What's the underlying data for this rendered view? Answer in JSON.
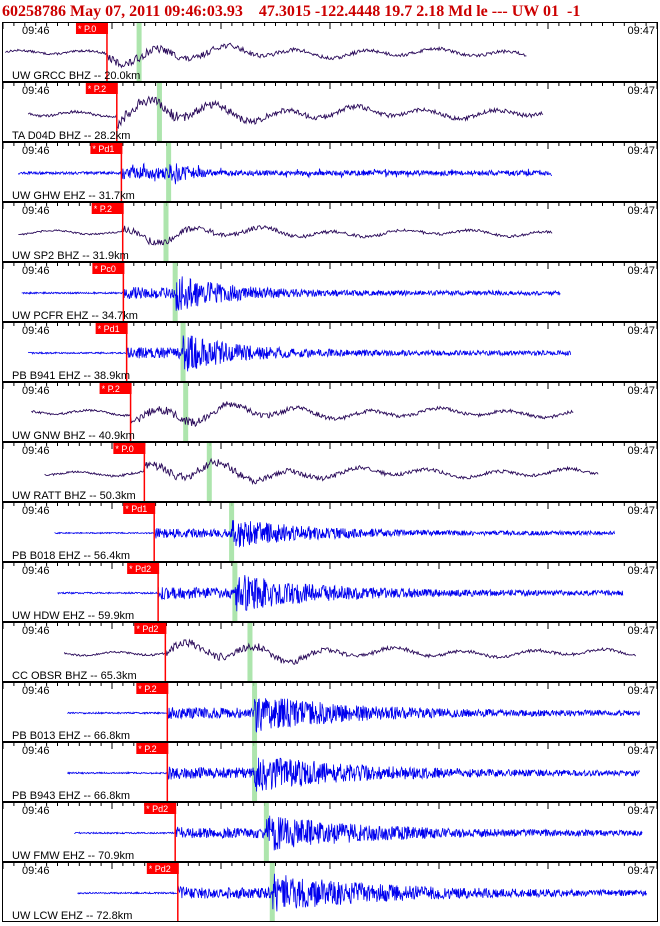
{
  "header": {
    "text": "60258786 May 07, 2011 09:46:03.93    47.3015 -122.4448 19.7 2.18 Md le --- UW 01  -1"
  },
  "colors": {
    "header": "#cc0000",
    "border": "#000000",
    "pick_box": "#ff0000",
    "pick_line": "#ff0000",
    "s_marker": "#9fe09f",
    "trace_bhz": "#2a0a5a",
    "trace_ehz": "#0000ee"
  },
  "chart_data": {
    "type": "line",
    "time_start_label": "09:46",
    "time_end_label": "09:47",
    "n_ticks": 60,
    "panels": [
      {
        "label": "UW GRCC BHZ -- 20.0km",
        "pick": "* P.0",
        "pick_pos": 0.16,
        "s_pos": 0.209,
        "start": 0.005,
        "end": 0.8,
        "kind": "bhz",
        "amp": 0.55,
        "style": "wavy"
      },
      {
        "label": "TA D04D BHZ -- 28.2km",
        "pick": "* P.2",
        "pick_pos": 0.175,
        "s_pos": 0.24,
        "start": 0.04,
        "end": 0.826,
        "kind": "bhz",
        "amp": 0.7,
        "style": "wavy"
      },
      {
        "label": "UW GHW EHZ -- 31.7km",
        "pick": "* Pd1",
        "pick_pos": 0.182,
        "s_pos": 0.254,
        "start": 0.025,
        "end": 0.839,
        "kind": "ehz",
        "amp": 0.65,
        "style": "spiky"
      },
      {
        "label": "UW SP2 BHZ -- 31.9km",
        "pick": "* P.2",
        "pick_pos": 0.184,
        "s_pos": 0.25,
        "start": 0.025,
        "end": 0.839,
        "kind": "bhz",
        "amp": 0.45,
        "style": "wavy"
      },
      {
        "label": "UW PCFR EHZ -- 34.7km",
        "pick": "* Pc0",
        "pick_pos": 0.185,
        "s_pos": 0.264,
        "start": 0.03,
        "end": 0.851,
        "kind": "ehz",
        "amp": 0.75,
        "style": "quake"
      },
      {
        "label": "PB B941 EHZ -- 38.9km",
        "pick": "* Pd1",
        "pick_pos": 0.19,
        "s_pos": 0.276,
        "start": 0.04,
        "end": 0.867,
        "kind": "ehz",
        "amp": 0.75,
        "style": "quake"
      },
      {
        "label": "UW GNW BHZ -- 40.9km",
        "pick": "* P.2",
        "pick_pos": 0.196,
        "s_pos": 0.28,
        "start": 0.045,
        "end": 0.872,
        "kind": "bhz",
        "amp": 0.55,
        "style": "wavy"
      },
      {
        "label": "UW RATT BHZ -- 50.3km",
        "pick": "* P.0",
        "pick_pos": 0.217,
        "s_pos": 0.316,
        "start": 0.065,
        "end": 0.91,
        "kind": "bhz",
        "amp": 0.55,
        "style": "wavy"
      },
      {
        "label": "PB B018 EHZ -- 56.4km",
        "pick": "* Pd1",
        "pick_pos": 0.232,
        "s_pos": 0.35,
        "start": 0.08,
        "end": 0.934,
        "kind": "ehz",
        "amp": 0.6,
        "style": "quake"
      },
      {
        "label": "UW HDW EHZ -- 59.9km",
        "pick": "* Pd2",
        "pick_pos": 0.238,
        "s_pos": 0.355,
        "start": 0.085,
        "end": 0.947,
        "kind": "ehz",
        "amp": 0.75,
        "style": "quake"
      },
      {
        "label": "CC OBSR BHZ -- 65.3km",
        "pick": "* Pd2",
        "pick_pos": 0.249,
        "s_pos": 0.378,
        "start": 0.095,
        "end": 0.967,
        "kind": "bhz",
        "amp": 0.5,
        "style": "wavy"
      },
      {
        "label": "PB B013 EHZ -- 66.8km",
        "pick": "* P.2",
        "pick_pos": 0.252,
        "s_pos": 0.385,
        "start": 0.1,
        "end": 0.972,
        "kind": "ehz",
        "amp": 0.75,
        "style": "quake"
      },
      {
        "label": "PB B943 EHZ -- 66.8km",
        "pick": "* P.2",
        "pick_pos": 0.252,
        "s_pos": 0.385,
        "start": 0.1,
        "end": 0.972,
        "kind": "ehz",
        "amp": 0.75,
        "style": "quake"
      },
      {
        "label": "UW FMW EHZ -- 70.9km",
        "pick": "* Pd2",
        "pick_pos": 0.264,
        "s_pos": 0.403,
        "start": 0.11,
        "end": 0.976,
        "kind": "ehz",
        "amp": 0.7,
        "style": "quake"
      },
      {
        "label": "UW LCW EHZ -- 72.8km",
        "pick": "* Pd2",
        "pick_pos": 0.268,
        "s_pos": 0.412,
        "start": 0.115,
        "end": 0.983,
        "kind": "ehz",
        "amp": 0.75,
        "style": "quake"
      }
    ]
  }
}
